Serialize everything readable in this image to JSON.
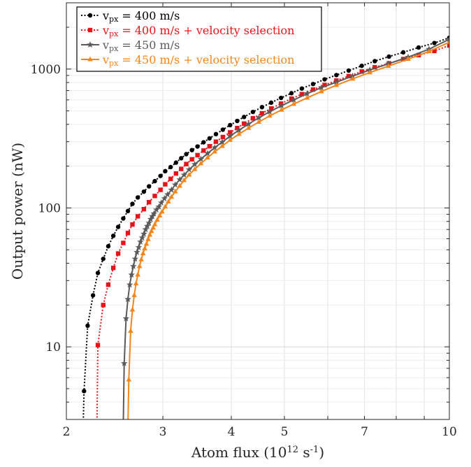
{
  "chart_data": {
    "type": "line",
    "title": "",
    "xlabel": "Atom flux (10",
    "xlabel_sup": "12",
    "xlabel_unit": " s",
    "xlabel_unit_sup": "-1",
    "xlabel_end": ")",
    "ylabel": "Output power (nW)",
    "xscale": "log",
    "yscale": "log",
    "xlim": [
      2,
      10
    ],
    "ylim": [
      3,
      3000
    ],
    "grid": true,
    "legend_placement": "top-left",
    "x_ticks": [
      2,
      3,
      4,
      5,
      7,
      10
    ],
    "x_tick_labels": [
      "2",
      "3",
      "4",
      "5",
      "7",
      "10"
    ],
    "y_ticks": [
      10,
      100,
      1000
    ],
    "y_tick_labels": [
      "10",
      "100",
      "1000"
    ],
    "series": [
      {
        "name_main": "v",
        "name_sub": "px",
        "name_rest": " = 400 m/s",
        "color": "#000000",
        "line_style": "dotted",
        "marker": "circle",
        "x": [
          2.154,
          2.187,
          2.237,
          2.283,
          2.335,
          2.385,
          2.436,
          2.486,
          2.54,
          2.59,
          2.64,
          2.7,
          2.77,
          2.83,
          2.9,
          2.97,
          3.03,
          3.1,
          3.17,
          3.24,
          3.31,
          3.39,
          3.47,
          3.56,
          3.65,
          3.75,
          3.86,
          3.98,
          4.1,
          4.22,
          4.38,
          4.55,
          4.73,
          4.93,
          5.15,
          5.38,
          5.64,
          5.92,
          6.22,
          6.55,
          6.92,
          7.31,
          7.76,
          8.24,
          8.79,
          9.39,
          10.0
        ],
        "y": [
          4.8,
          14.2,
          23.5,
          34,
          43,
          53,
          63,
          73,
          84,
          95,
          107,
          119,
          131,
          143,
          156,
          170,
          184,
          197,
          212,
          228,
          244,
          261,
          277,
          297,
          317,
          340,
          366,
          395,
          423,
          452,
          491,
          532,
          573,
          620,
          670,
          724,
          780,
          843,
          905,
          975,
          1055,
          1140,
          1230,
          1320,
          1430,
          1540,
          1680
        ]
      },
      {
        "name_main": "v",
        "name_sub": "px",
        "name_rest": " = 400 m/s + velocity selection",
        "color": "#e8131a",
        "line_style": "dotted",
        "marker": "square",
        "x": [
          2.283,
          2.335,
          2.385,
          2.436,
          2.486,
          2.54,
          2.59,
          2.64,
          2.7,
          2.77,
          2.83,
          2.9,
          2.97,
          3.03,
          3.1,
          3.17,
          3.24,
          3.31,
          3.39,
          3.47,
          3.56,
          3.65,
          3.75,
          3.86,
          3.98,
          4.1,
          4.22,
          4.38,
          4.55,
          4.73,
          4.93,
          5.15,
          5.38,
          5.64,
          5.92,
          6.22,
          6.55,
          6.92,
          7.31,
          7.76,
          8.24,
          8.79,
          9.39,
          10.0
        ],
        "y": [
          10.3,
          20,
          28,
          37,
          47,
          56,
          66,
          76,
          87,
          98,
          110,
          122,
          135,
          148,
          162,
          177,
          191,
          207,
          224,
          240,
          259,
          278,
          300,
          324,
          350,
          376,
          405,
          442,
          480,
          520,
          564,
          612,
          660,
          712,
          768,
          826,
          890,
          960,
          1030,
          1100,
          1180,
          1260,
          1350,
          1480
        ]
      },
      {
        "name_main": "v",
        "name_sub": "px",
        "name_rest": " = 450 m/s",
        "color": "#5a5a5a",
        "line_style": "solid",
        "marker": "star",
        "x": [
          2.55,
          2.57,
          2.59,
          2.61,
          2.63,
          2.65,
          2.67,
          2.69,
          2.71,
          2.73,
          2.75,
          2.77,
          2.79,
          2.81,
          2.83,
          2.85,
          2.87,
          2.89,
          2.92,
          2.95,
          2.98,
          3.02,
          3.06,
          3.11,
          3.16,
          3.22,
          3.28,
          3.35,
          3.43,
          3.52,
          3.62,
          3.73,
          3.85,
          3.98,
          4.13,
          4.3,
          4.49,
          4.7,
          4.94,
          5.2,
          5.5,
          5.84,
          6.22,
          6.66,
          7.16,
          7.74,
          8.41,
          9.18,
          10.0
        ],
        "y": [
          7.6,
          16,
          22,
          28,
          33,
          38,
          43,
          48,
          52,
          57,
          61,
          65,
          70,
          74,
          78,
          83,
          87,
          91,
          97,
          102,
          109,
          117,
          125,
          135,
          147,
          160,
          173,
          189,
          206,
          225,
          247,
          272,
          298,
          329,
          363,
          402,
          446,
          493,
          545,
          600,
          665,
          735,
          805,
          890,
          985,
          1090,
          1220,
          1390,
          1640
        ]
      },
      {
        "name_main": "v",
        "name_sub": "px",
        "name_rest": " = 450 m/s + velocity selection",
        "color": "#f58518",
        "line_style": "solid",
        "marker": "triangle",
        "x": [
          2.6,
          2.62,
          2.64,
          2.66,
          2.68,
          2.7,
          2.72,
          2.74,
          2.76,
          2.78,
          2.8,
          2.82,
          2.84,
          2.86,
          2.88,
          2.9,
          2.93,
          2.96,
          2.99,
          3.03,
          3.07,
          3.11,
          3.16,
          3.22,
          3.28,
          3.35,
          3.43,
          3.52,
          3.62,
          3.73,
          3.85,
          3.98,
          4.13,
          4.3,
          4.49,
          4.7,
          4.94,
          5.2,
          5.5,
          5.84,
          6.22,
          6.66,
          7.16,
          7.74,
          8.41,
          9.18,
          10.0
        ],
        "y": [
          5.8,
          13,
          18.5,
          23.5,
          28.5,
          33,
          38,
          42.5,
          47,
          51,
          55,
          59.5,
          64,
          68,
          72,
          76,
          82,
          88,
          94,
          102,
          111,
          120,
          131,
          144,
          158,
          173,
          190,
          209,
          230,
          254,
          279,
          308,
          340,
          376,
          416,
          460,
          508,
          560,
          620,
          690,
          765,
          850,
          945,
          1050,
          1180,
          1340,
          1560
        ]
      }
    ]
  }
}
